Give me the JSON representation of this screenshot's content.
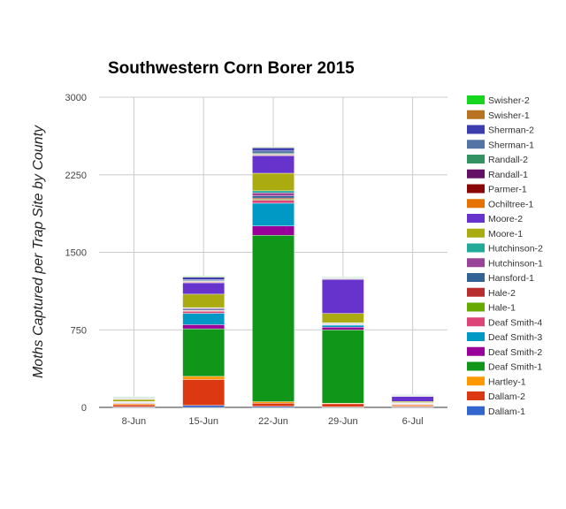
{
  "chart_data": {
    "type": "bar",
    "stacked": true,
    "title": "Southwestern Corn Borer 2015",
    "ylabel": "Moths Captured per Trap Site by County",
    "xlabel": "",
    "ylim": [
      0,
      3000
    ],
    "yticks": [
      0,
      750,
      1500,
      2250,
      3000
    ],
    "grid": true,
    "legend_position": "right",
    "categories": [
      "8-Jun",
      "15-Jun",
      "22-Jun",
      "29-Jun",
      "6-Jul"
    ],
    "series": [
      {
        "name": "Dallam-1",
        "color": "#3366cc",
        "values": [
          5,
          20,
          10,
          5,
          5
        ]
      },
      {
        "name": "Dallam-2",
        "color": "#dc3912",
        "values": [
          20,
          250,
          30,
          30,
          10
        ]
      },
      {
        "name": "Hartley-1",
        "color": "#ff9900",
        "values": [
          10,
          30,
          15,
          5,
          10
        ]
      },
      {
        "name": "Deaf Smith-1",
        "color": "#109618",
        "values": [
          0,
          460,
          1610,
          710,
          0
        ]
      },
      {
        "name": "Deaf Smith-2",
        "color": "#990099",
        "values": [
          5,
          40,
          90,
          25,
          5
        ]
      },
      {
        "name": "Deaf Smith-3",
        "color": "#0099c6",
        "values": [
          5,
          110,
          220,
          20,
          5
        ]
      },
      {
        "name": "Deaf Smith-4",
        "color": "#dd4477",
        "values": [
          2,
          20,
          30,
          5,
          2
        ]
      },
      {
        "name": "Hale-1",
        "color": "#66aa00",
        "values": [
          2,
          5,
          10,
          2,
          2
        ]
      },
      {
        "name": "Hale-2",
        "color": "#b82e2e",
        "values": [
          2,
          5,
          10,
          2,
          2
        ]
      },
      {
        "name": "Hansford-1",
        "color": "#316395",
        "values": [
          2,
          10,
          20,
          5,
          2
        ]
      },
      {
        "name": "Hutchinson-1",
        "color": "#994499",
        "values": [
          2,
          10,
          30,
          5,
          2
        ]
      },
      {
        "name": "Hutchinson-2",
        "color": "#22aa99",
        "values": [
          2,
          5,
          20,
          5,
          2
        ]
      },
      {
        "name": "Moore-1",
        "color": "#aaaa11",
        "values": [
          20,
          130,
          170,
          90,
          10
        ]
      },
      {
        "name": "Moore-2",
        "color": "#6633cc",
        "values": [
          5,
          110,
          170,
          330,
          50
        ]
      },
      {
        "name": "Ochiltree-1",
        "color": "#e67300",
        "values": [
          2,
          5,
          5,
          2,
          2
        ]
      },
      {
        "name": "Parmer-1",
        "color": "#8b0707",
        "values": [
          2,
          5,
          5,
          2,
          2
        ]
      },
      {
        "name": "Randall-1",
        "color": "#651067",
        "values": [
          2,
          5,
          5,
          2,
          2
        ]
      },
      {
        "name": "Randall-2",
        "color": "#329262",
        "values": [
          2,
          5,
          10,
          5,
          2
        ]
      },
      {
        "name": "Sherman-1",
        "color": "#5574a6",
        "values": [
          5,
          10,
          20,
          5,
          2
        ]
      },
      {
        "name": "Sherman-2",
        "color": "#3b3eac",
        "values": [
          5,
          25,
          30,
          5,
          5
        ]
      },
      {
        "name": "Swisher-1",
        "color": "#b77322",
        "values": [
          2,
          5,
          5,
          2,
          2
        ]
      },
      {
        "name": "Swisher-2",
        "color": "#16d620",
        "values": [
          2,
          5,
          5,
          2,
          2
        ]
      }
    ]
  }
}
